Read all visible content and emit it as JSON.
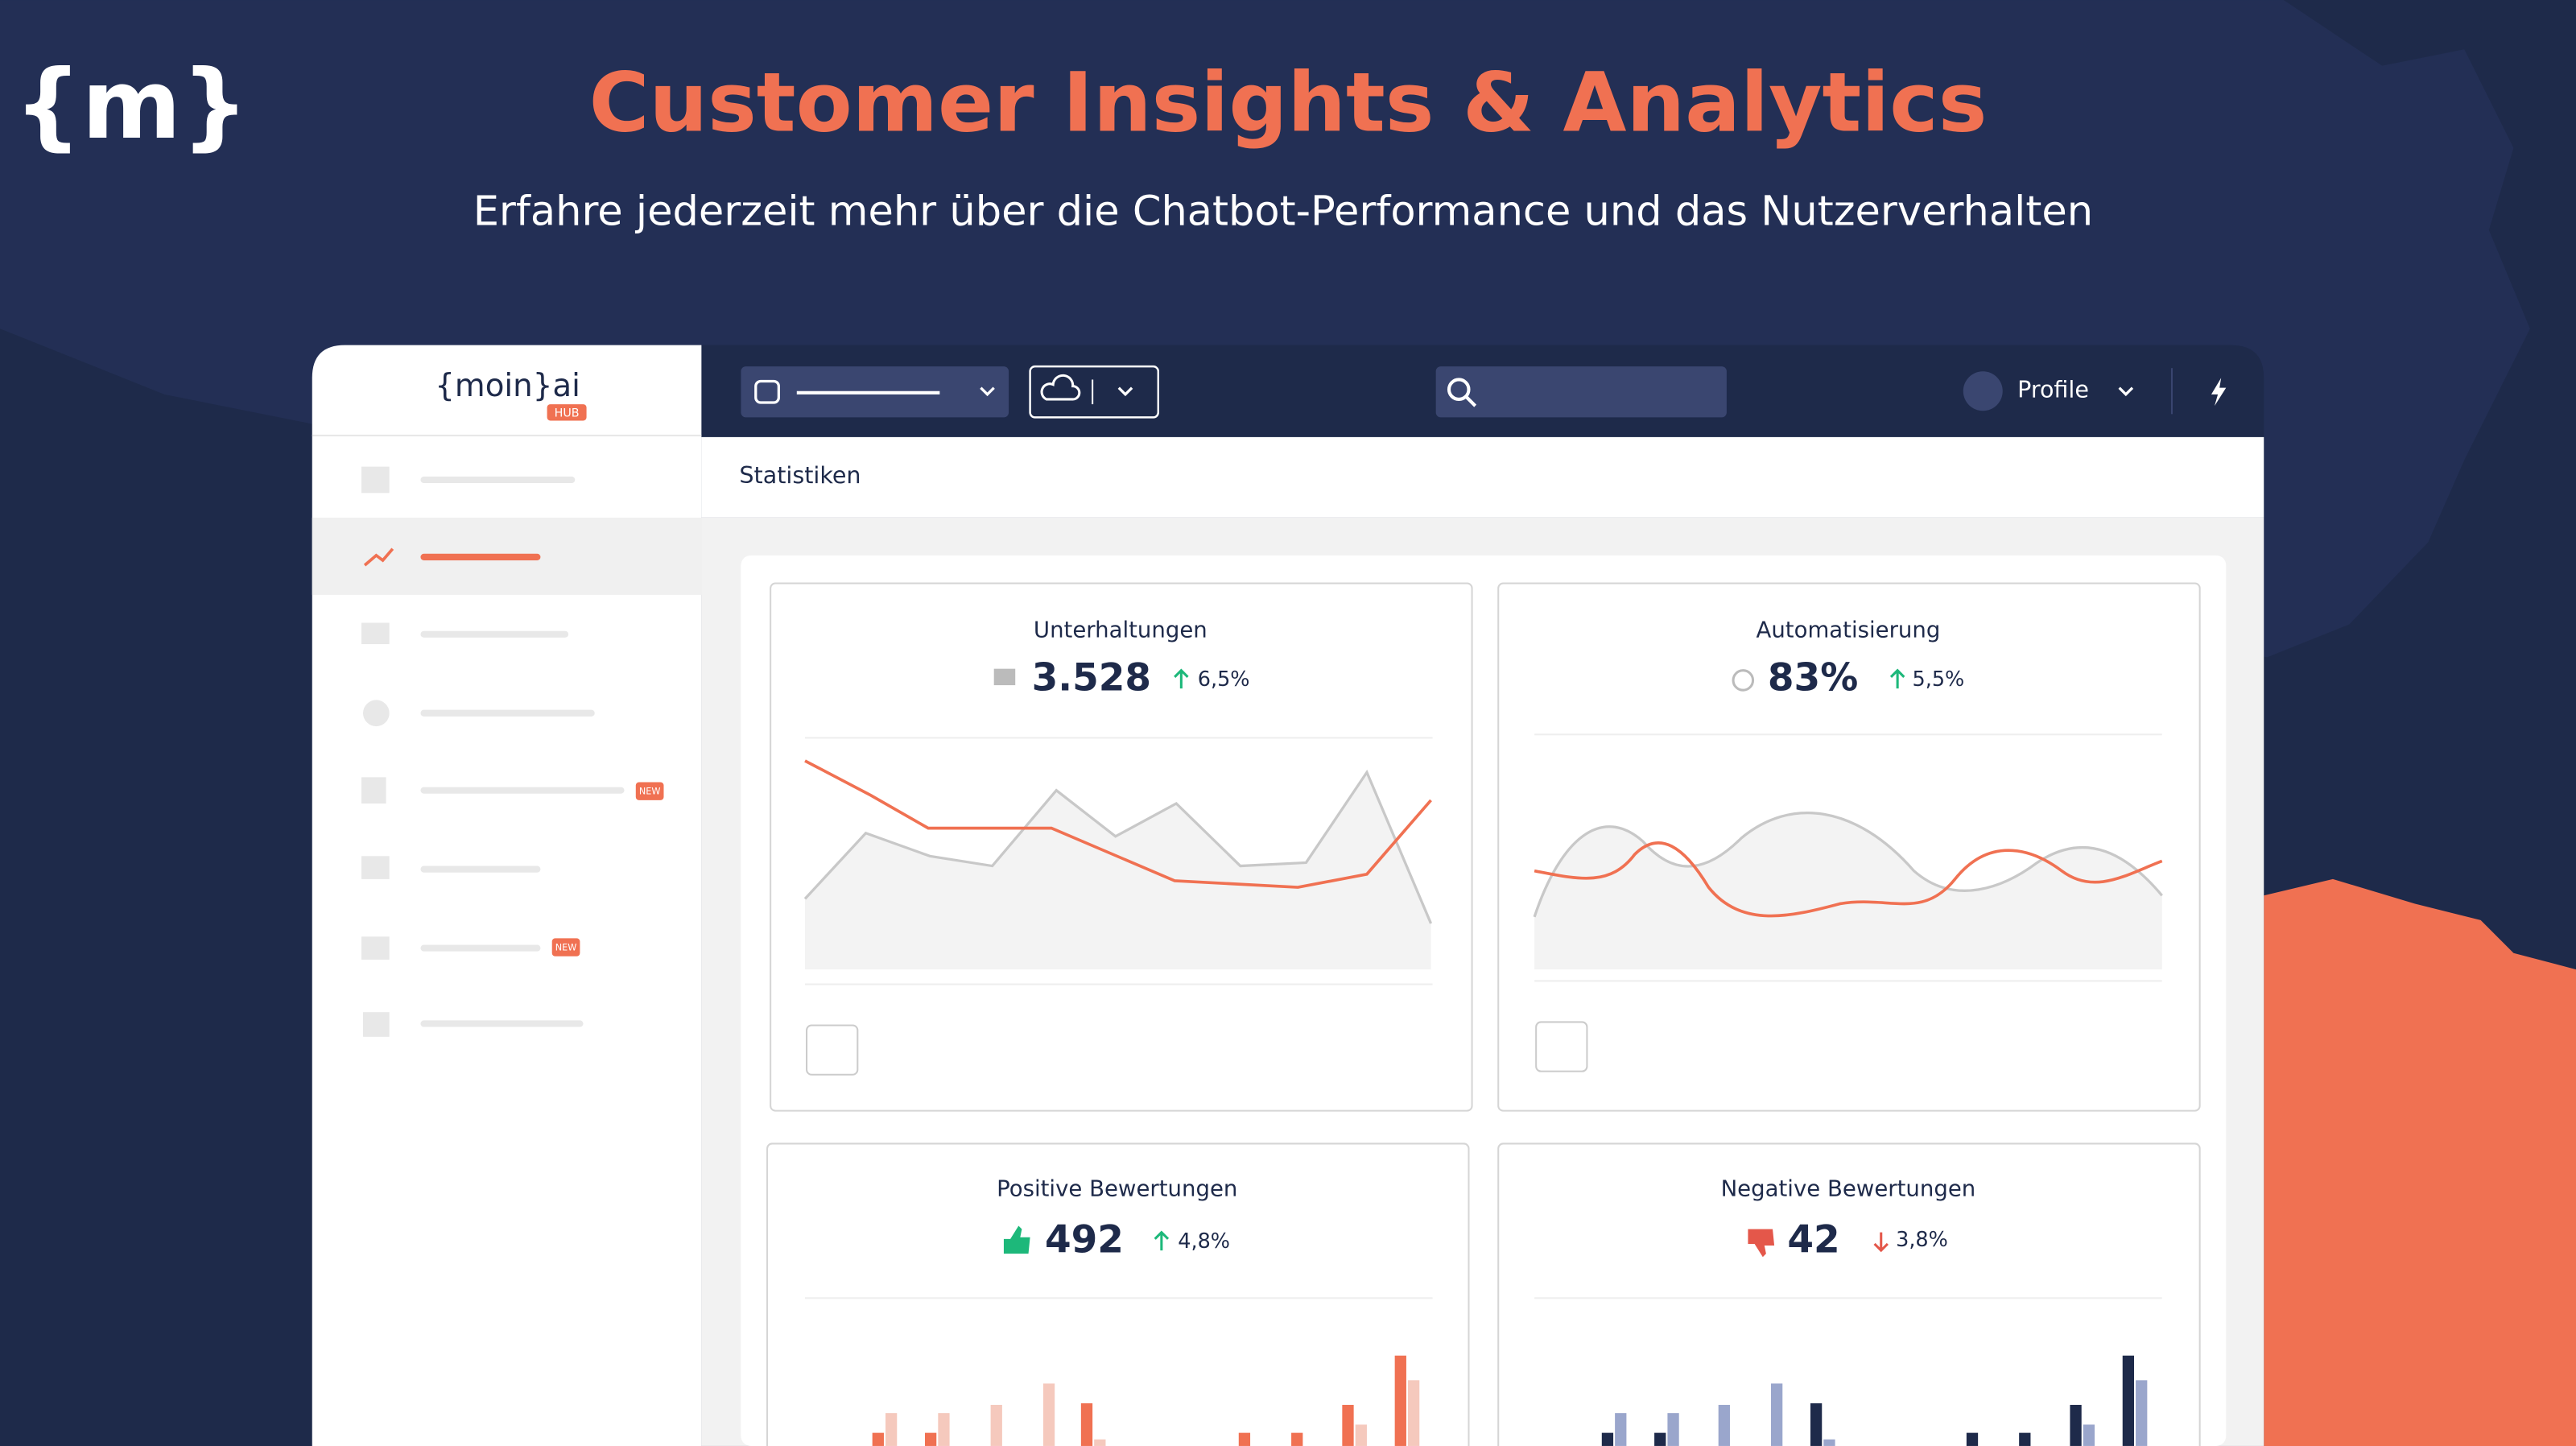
{
  "header": {
    "logo": "{m}",
    "title": "Customer Insights & Analytics",
    "subtitle": "Erfahre jederzeit mehr über die Chatbot-Performance und das Nutzerverhalten"
  },
  "app": {
    "logo": "{moin}ai",
    "logo_badge": "HUB",
    "profile": "Profile",
    "page_title": "Statistiken",
    "sidebar_badges": [
      "NEW",
      "NEW"
    ]
  },
  "cards": [
    {
      "title": "Unterhaltungen",
      "value": "3.528",
      "change": "6,5%"
    },
    {
      "title": "Automatisierung",
      "value": "83%",
      "change": "5,5%"
    },
    {
      "title": "Positive Bewertungen",
      "value": "492",
      "change": "4,8%"
    },
    {
      "title": "Negative Bewertungen",
      "value": "42",
      "change": "3,8%"
    }
  ]
}
